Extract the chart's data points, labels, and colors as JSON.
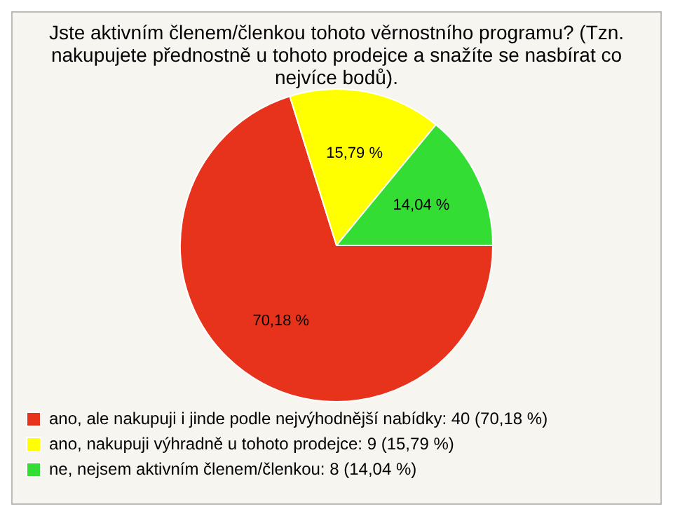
{
  "chart_data": {
    "type": "pie",
    "title": "Jste aktivním členem/členkou tohoto věrnostního programu? (Tzn. nakupujete přednostně u tohoto prodejce a snažíte se nasbírat co nejvíce bodů).",
    "categories": [
      "ano, ale nakupuji i jinde podle nejvýhodnější nabídky: 40 (70,18 %)",
      "ano, nakupuji výhradně u tohoto prodejce: 9 (15,79 %)",
      "ne, nejsem aktivním členem/členkou: 8 (14,04 %)"
    ],
    "values": [
      70.18,
      15.79,
      14.04
    ],
    "value_labels": [
      "70,18 %",
      "15,79 %",
      "14,04 %"
    ],
    "colors": [
      "#e8331c",
      "#ffff00",
      "#33dd33"
    ],
    "legend": "bottom"
  }
}
